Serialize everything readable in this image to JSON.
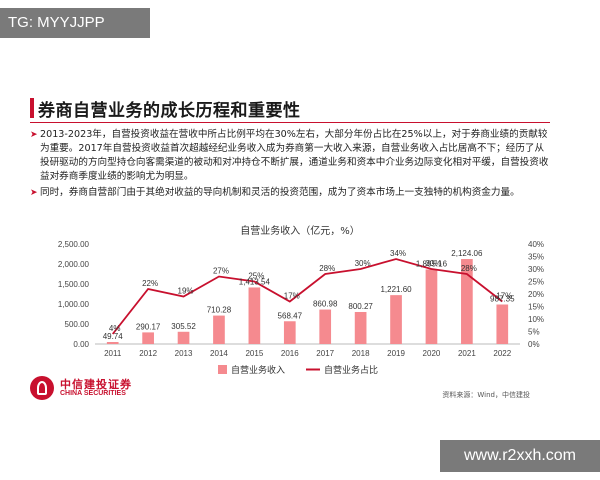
{
  "watermark_top": "TG: MYYJJPP",
  "watermark_bottom": "www.r2xxh.com",
  "slide": {
    "title": "券商自营业务的成长历程和重要性",
    "bullets": [
      "2013-2023年，自营投资收益在营收中所占比例平均在30%左右，大部分年份占比在25%以上，对于券商业绩的贡献较为重要。2017年自营投资收益首次超越经纪业务收入成为券商第一大收入来源，自营业务收入占比居高不下；经历了从投研驱动的方向型持仓向客需渠道的被动和对冲持仓不断扩展，通道业务和资本中介业务边际变化相对平缓，自营投资收益对券商季度业绩的影响尤为明显。",
      "同时，券商自营部门由于其绝对收益的导向机制和灵活的投资范围，成为了资本市场上一支独特的机构资金力量。"
    ],
    "bullet_mark": "➤"
  },
  "logo": {
    "cn": "中信建投证券",
    "en": "CHINA SECURITIES"
  },
  "source": "资料来源：Wind，中信建投",
  "colors": {
    "bar": "#f58a8f",
    "line": "#c8102e",
    "accent": "#c8102e"
  },
  "chart_data": {
    "type": "bar",
    "title": "自营业务收入（亿元，%）",
    "categories": [
      "2011",
      "2012",
      "2013",
      "2014",
      "2015",
      "2016",
      "2017",
      "2018",
      "2019",
      "2020",
      "2021",
      "2022"
    ],
    "series": [
      {
        "name": "自营业务收入",
        "type": "bar",
        "axis": "left",
        "values": [
          49.74,
          290.17,
          305.52,
          710.28,
          1413.54,
          568.47,
          860.98,
          800.27,
          1221.6,
          1865.16,
          2124.06,
          987.35
        ],
        "labels": [
          "49.74",
          "290.17",
          "305.52",
          "710.28",
          "1,413.54",
          "568.47",
          "860.98",
          "800.27",
          "1,221.60",
          "1,865.16",
          "2,124.06",
          "987.35"
        ]
      },
      {
        "name": "自营业务占比",
        "type": "line",
        "axis": "right",
        "values": [
          4,
          22,
          19,
          27,
          25,
          17,
          28,
          30,
          34,
          30,
          28,
          17
        ],
        "labels": [
          "4%",
          "22%",
          "19%",
          "27%",
          "25%",
          "17%",
          "28%",
          "30%",
          "34%",
          "30%",
          "28%",
          "17%"
        ]
      }
    ],
    "y_left": {
      "range": [
        0,
        2500
      ],
      "ticks": [
        "0.00",
        "500.00",
        "1,000.00",
        "1,500.00",
        "2,000.00",
        "2,500.00"
      ]
    },
    "y_right": {
      "range": [
        0,
        40
      ],
      "ticks": [
        "0%",
        "5%",
        "10%",
        "15%",
        "20%",
        "25%",
        "30%",
        "35%",
        "40%"
      ]
    },
    "grid": false,
    "legend_position": "bottom"
  }
}
